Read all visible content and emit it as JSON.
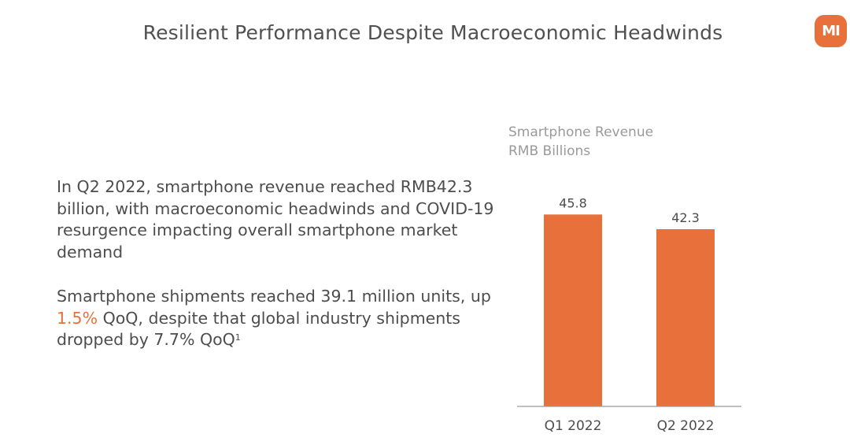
{
  "page": {
    "title": "Resilient Performance Despite Macroeconomic Headwinds",
    "logo_text": "MI"
  },
  "colors": {
    "accent": "#e8703b",
    "title_text": "#505050",
    "body_text": "#4d4d4d",
    "caption_text": "#9a9a9a"
  },
  "body": {
    "para1": "In Q2 2022, smartphone revenue reached RMB42.3 billion, with macroeconomic headwinds and COVID-19 resurgence impacting overall smartphone market demand",
    "para2_part1": "Smartphone shipments reached 39.1 million units, up ",
    "para2_highlight": "1.5%",
    "para2_part2": " QoQ, despite that global industry shipments dropped by 7.7% QoQ",
    "para2_footnote": "1"
  },
  "chart_caption": {
    "line1": "Smartphone Revenue",
    "line2": "RMB Billions"
  },
  "chart_data": {
    "type": "bar",
    "title": "Smartphone Revenue",
    "ylabel": "RMB Billions",
    "xlabel": "",
    "categories": [
      "Q1 2022",
      "Q2 2022"
    ],
    "values": [
      45.8,
      42.3
    ],
    "data_labels": [
      "45.8",
      "42.3"
    ],
    "ylim": [
      0,
      50
    ],
    "grid": false,
    "legend": "none",
    "bar_color": "#e8703b"
  }
}
